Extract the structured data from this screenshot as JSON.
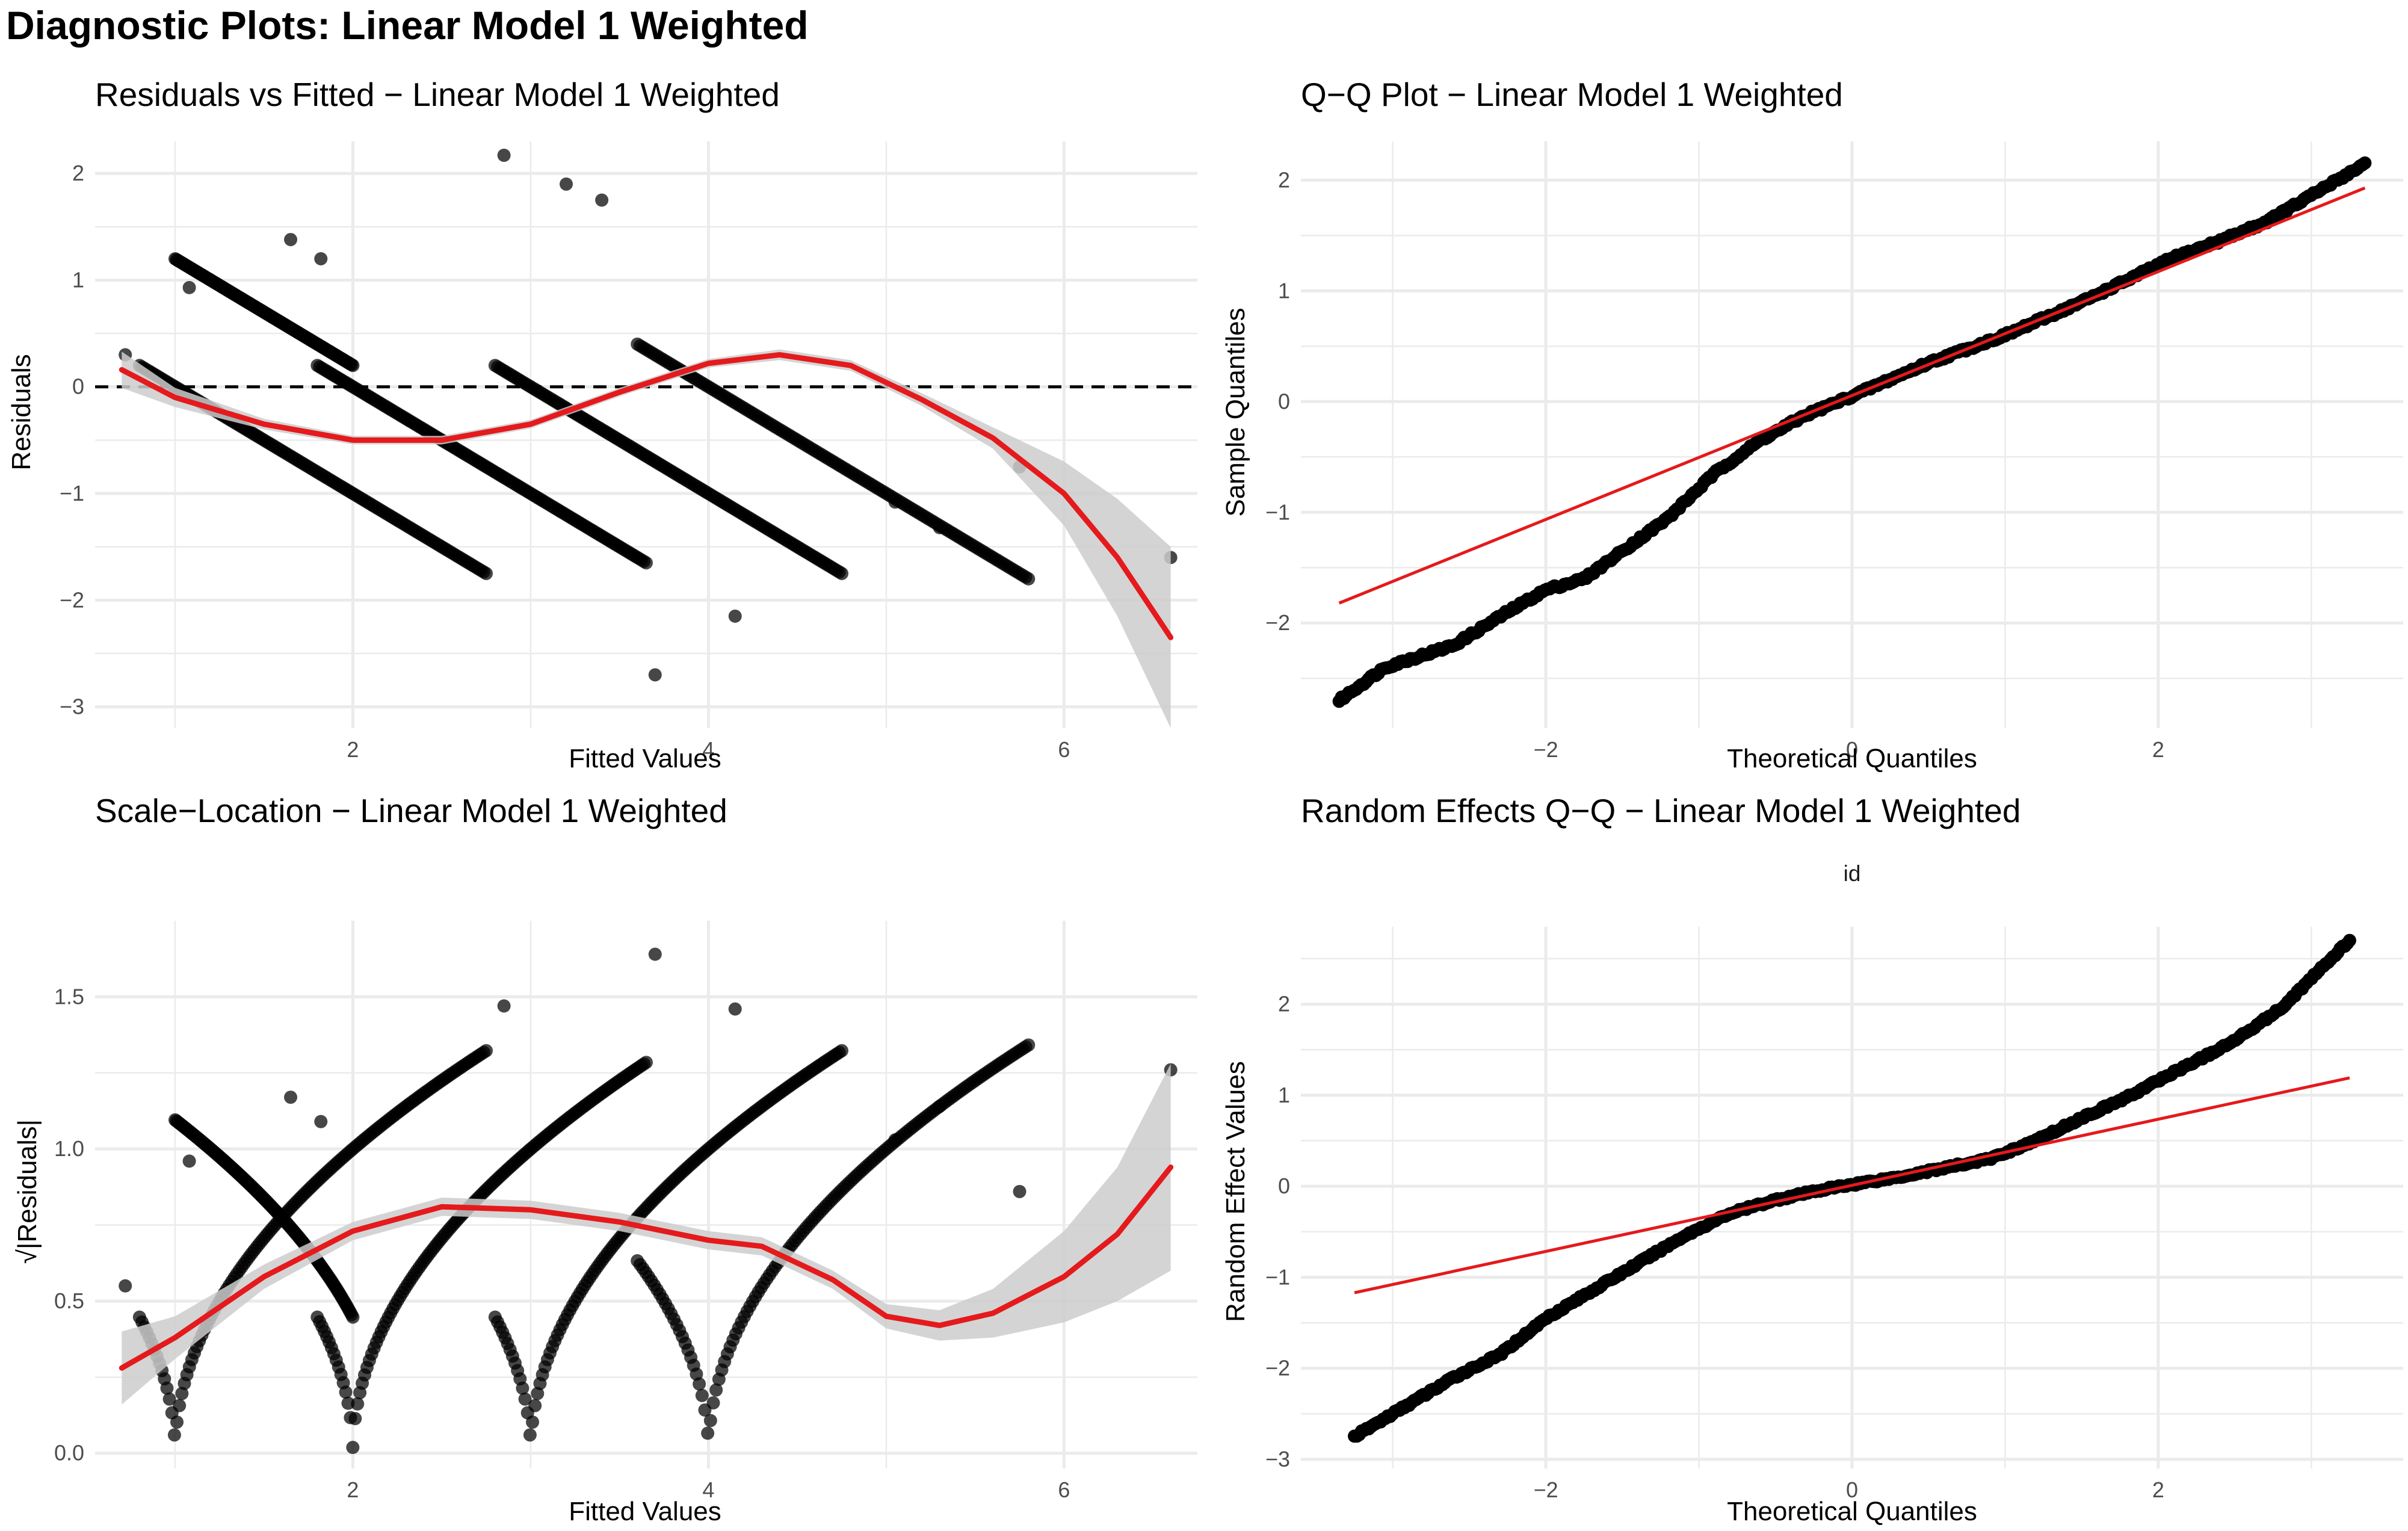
{
  "page_title": "Diagnostic Plots: Linear Model 1 Weighted",
  "colors": {
    "fit": "#E41A1C",
    "band": "#CCCCCC",
    "point": "#000000",
    "grid": "#EBEBEB"
  },
  "chart_data": [
    {
      "type": "scatter",
      "title": "Residuals vs Fitted − Linear Model 1 Weighted",
      "xlabel": "Fitted Values",
      "ylabel": "Residuals",
      "xlim": [
        0.55,
        6.75
      ],
      "ylim": [
        -3.2,
        2.3
      ],
      "xticks": [
        2,
        4,
        6
      ],
      "xtick_labels": [
        "2",
        "4",
        "6"
      ],
      "yticks": [
        -3,
        -2,
        -1,
        0,
        1,
        2
      ],
      "ytick_labels": [
        "−3",
        "−2",
        "−1",
        "0",
        "1",
        "2"
      ],
      "hline": 0,
      "point_bands": [
        {
          "x": [
            0.8,
            2.75
          ],
          "offset": 1
        },
        {
          "x": [
            1.8,
            3.65
          ],
          "offset": 2
        },
        {
          "x": [
            2.8,
            4.75
          ],
          "offset": 3
        },
        {
          "x": [
            3.6,
            5.8
          ],
          "offset": 4
        },
        {
          "x": [
            1.0,
            2.0
          ],
          "offset": 2.2
        }
      ],
      "extra_points": [
        [
          0.72,
          0.3
        ],
        [
          1.08,
          0.93
        ],
        [
          1.65,
          1.38
        ],
        [
          1.82,
          1.2
        ],
        [
          2.85,
          2.17
        ],
        [
          3.2,
          1.9
        ],
        [
          3.4,
          1.75
        ],
        [
          3.7,
          -2.7
        ],
        [
          4.15,
          -2.15
        ],
        [
          5.05,
          -1.08
        ],
        [
          5.3,
          -1.32
        ],
        [
          5.75,
          -0.75
        ],
        [
          6.6,
          -1.6
        ]
      ],
      "smooth": {
        "x": [
          0.7,
          1.0,
          1.5,
          2.0,
          2.5,
          3.0,
          3.5,
          4.0,
          4.4,
          4.8,
          5.2,
          5.6,
          6.0,
          6.3,
          6.6
        ],
        "y": [
          0.16,
          -0.1,
          -0.35,
          -0.5,
          -0.5,
          -0.35,
          -0.05,
          0.22,
          0.3,
          0.2,
          -0.12,
          -0.48,
          -1.0,
          -1.6,
          -2.35
        ],
        "se": [
          0.17,
          0.09,
          0.05,
          0.04,
          0.04,
          0.04,
          0.04,
          0.04,
          0.05,
          0.05,
          0.06,
          0.1,
          0.3,
          0.55,
          0.85
        ]
      }
    },
    {
      "type": "scatter",
      "title": "Q−Q Plot − Linear Model 1 Weighted",
      "xlabel": "Theoretical Quantiles",
      "ylabel": "Sample Quantiles",
      "xlim": [
        -3.6,
        3.6
      ],
      "ylim": [
        -2.95,
        2.35
      ],
      "xticks": [
        -2,
        0,
        2
      ],
      "xtick_labels": [
        "−2",
        "0",
        "2"
      ],
      "yticks": [
        -2,
        -1,
        0,
        1,
        2
      ],
      "ytick_labels": [
        "−2",
        "−1",
        "0",
        "1",
        "2"
      ],
      "reference_line": {
        "x": [
          -3.35,
          3.35
        ],
        "y": [
          -1.82,
          1.93
        ]
      },
      "sample_curve": {
        "x": [
          -3.35,
          -3.05,
          -2.6,
          -2.25,
          -2.0,
          -1.75,
          -1.5,
          -1.2,
          -0.9,
          -0.6,
          -0.3,
          0.0,
          0.5,
          1.0,
          1.5,
          1.8,
          2.1,
          2.4,
          2.7,
          2.95,
          3.35
        ],
        "y": [
          -2.7,
          -2.4,
          -2.2,
          -1.9,
          -1.7,
          -1.6,
          -1.35,
          -1.05,
          -0.65,
          -0.35,
          -0.12,
          0.05,
          0.35,
          0.6,
          0.9,
          1.1,
          1.3,
          1.45,
          1.62,
          1.82,
          2.15
        ]
      }
    },
    {
      "type": "scatter",
      "title": "Scale−Location − Linear Model 1 Weighted",
      "xlabel": "Fitted Values",
      "ylabel": "√|Residuals|",
      "xlim": [
        0.55,
        6.75
      ],
      "ylim": [
        -0.05,
        1.75
      ],
      "xticks": [
        2,
        4,
        6
      ],
      "xtick_labels": [
        "2",
        "4",
        "6"
      ],
      "yticks": [
        0.0,
        0.5,
        1.0,
        1.5
      ],
      "ytick_labels": [
        "0.0",
        "0.5",
        "1.0",
        "1.5"
      ],
      "point_bands": [
        {
          "x": [
            0.8,
            2.75
          ],
          "offset": 1
        },
        {
          "x": [
            1.8,
            3.65
          ],
          "offset": 2
        },
        {
          "x": [
            2.8,
            4.75
          ],
          "offset": 3
        },
        {
          "x": [
            3.6,
            5.8
          ],
          "offset": 4
        },
        {
          "x": [
            1.0,
            2.0
          ],
          "offset": 2.2
        }
      ],
      "extra_points": [
        [
          0.72,
          0.55
        ],
        [
          1.08,
          0.96
        ],
        [
          1.65,
          1.17
        ],
        [
          1.82,
          1.09
        ],
        [
          2.85,
          1.47
        ],
        [
          3.7,
          1.64
        ],
        [
          4.15,
          1.46
        ],
        [
          5.05,
          1.03
        ],
        [
          5.3,
          1.14
        ],
        [
          5.75,
          0.86
        ],
        [
          6.6,
          1.26
        ]
      ],
      "smooth": {
        "x": [
          0.7,
          1.0,
          1.5,
          2.0,
          2.5,
          3.0,
          3.5,
          4.0,
          4.3,
          4.7,
          5.0,
          5.3,
          5.6,
          6.0,
          6.3,
          6.6
        ],
        "y": [
          0.28,
          0.38,
          0.58,
          0.73,
          0.81,
          0.8,
          0.76,
          0.7,
          0.68,
          0.57,
          0.45,
          0.42,
          0.46,
          0.58,
          0.72,
          0.94
        ],
        "se": [
          0.12,
          0.07,
          0.04,
          0.03,
          0.03,
          0.03,
          0.03,
          0.03,
          0.03,
          0.03,
          0.04,
          0.05,
          0.08,
          0.15,
          0.22,
          0.34
        ]
      }
    },
    {
      "type": "scatter",
      "title": "Random Effects Q−Q − Linear Model 1 Weighted",
      "strip_label": "id",
      "xlabel": "Theoretical Quantiles",
      "ylabel": "Random Effect Values",
      "xlim": [
        -3.6,
        3.6
      ],
      "ylim": [
        -3.1,
        2.85
      ],
      "xticks": [
        -2,
        0,
        2
      ],
      "xtick_labels": [
        "−2",
        "0",
        "2"
      ],
      "yticks": [
        -3,
        -2,
        -1,
        0,
        1,
        2
      ],
      "ytick_labels": [
        "−3",
        "−2",
        "−1",
        "0",
        "1",
        "2"
      ],
      "reference_line": {
        "x": [
          -3.25,
          3.25
        ],
        "y": [
          -1.17,
          1.19
        ]
      },
      "sample_curve": {
        "x": [
          -3.25,
          -2.95,
          -2.6,
          -2.3,
          -2.0,
          -1.7,
          -1.4,
          -1.1,
          -0.8,
          -0.5,
          -0.2,
          0.0,
          0.3,
          0.6,
          0.9,
          1.2,
          1.5,
          1.8,
          2.1,
          2.45,
          2.8,
          3.25
        ],
        "y": [
          -2.75,
          -2.45,
          -2.1,
          -1.85,
          -1.45,
          -1.15,
          -0.85,
          -0.55,
          -0.3,
          -0.15,
          -0.04,
          0.02,
          0.1,
          0.2,
          0.3,
          0.5,
          0.75,
          0.98,
          1.25,
          1.55,
          1.95,
          2.7
        ]
      }
    }
  ]
}
